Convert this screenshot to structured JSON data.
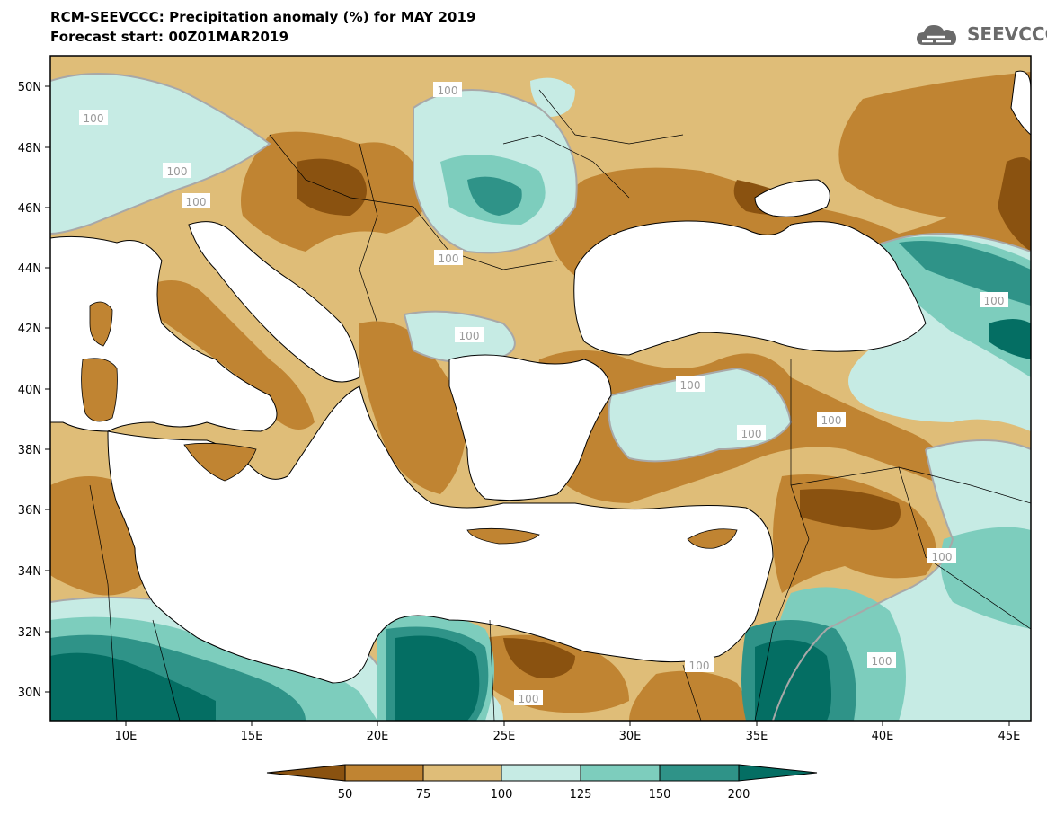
{
  "header": {
    "title_line1": "RCM-SEEVCCC: Precipitation anomaly (%) for MAY 2019",
    "title_line2": "Forecast start: 00Z01MAR2019",
    "logo_text": "SEEVCCC"
  },
  "map": {
    "lat_ticks": [
      "50N",
      "48N",
      "46N",
      "44N",
      "42N",
      "40N",
      "38N",
      "36N",
      "34N",
      "32N",
      "30N"
    ],
    "lon_ticks": [
      "10E",
      "15E",
      "20E",
      "25E",
      "30E",
      "35E",
      "40E",
      "45E"
    ],
    "contour_labels": [
      "100",
      "100",
      "100",
      "100",
      "100",
      "100",
      "100",
      "100",
      "100",
      "100",
      "100",
      "100",
      "100",
      "100"
    ],
    "colors": {
      "lt50": "#8a5210",
      "50_75": "#c08432",
      "75_100": "#dfbd78",
      "100_125": "#c6ebe4",
      "125_150": "#7dcdbd",
      "150_200": "#2f9388",
      "gt200": "#046e63",
      "land_outline": "#000000",
      "contour_100": "#a8a8a8"
    }
  },
  "colorbar": {
    "labels": [
      "50",
      "75",
      "100",
      "125",
      "150",
      "200"
    ],
    "colors": [
      "#8a5210",
      "#c08432",
      "#dfbd78",
      "#c6ebe4",
      "#7dcdbd",
      "#2f9388",
      "#046e63"
    ]
  }
}
